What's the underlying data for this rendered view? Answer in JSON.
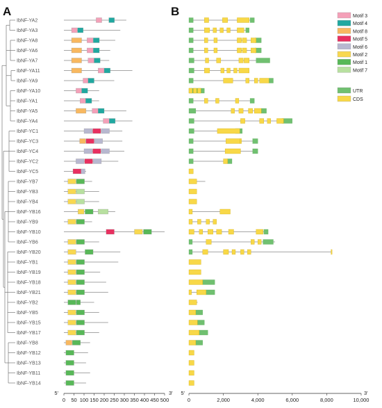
{
  "panels": {
    "a": "A",
    "b": "B"
  },
  "motif_legend": [
    {
      "label": "Motif 3",
      "color": "#f4a0b8"
    },
    {
      "label": "Motif 4",
      "color": "#20a8a0"
    },
    {
      "label": "Motif 8",
      "color": "#f8b860"
    },
    {
      "label": "Motif 5",
      "color": "#e83060"
    },
    {
      "label": "Motif 6",
      "color": "#b8b8d0"
    },
    {
      "label": "Motif 2",
      "color": "#f8d850"
    },
    {
      "label": "Motif 1",
      "color": "#58b858"
    },
    {
      "label": "Motif 7",
      "color": "#b8e0a0"
    }
  ],
  "structure_legend": [
    {
      "label": "UTR",
      "color": "#70c070"
    },
    {
      "label": "CDS",
      "color": "#f8d848"
    }
  ],
  "axis_a": {
    "prime5": "5'",
    "prime3": "3'",
    "ticks": [
      "0",
      "50",
      "100",
      "150",
      "200",
      "250",
      "300",
      "350",
      "400",
      "450",
      "500"
    ]
  },
  "axis_b": {
    "prime5": "5'",
    "prime3": "3'",
    "ticks": [
      "0",
      "2,000",
      "4,000",
      "6,000",
      "8,000",
      "10,000"
    ]
  },
  "genes": [
    {
      "name": "IbNF-YA2",
      "len": 310,
      "m": [
        [
          160,
          28,
          "m3"
        ],
        [
          223,
          28,
          "m4"
        ]
      ],
      "b_len": 3800,
      "u": [
        [
          0,
          250
        ],
        [
          3550,
          250
        ]
      ],
      "c": [
        [
          900,
          250
        ],
        [
          1950,
          300
        ],
        [
          2800,
          700
        ]
      ]
    },
    {
      "name": "IbNF-YA3",
      "len": 280,
      "m": [
        [
          38,
          28,
          "m3"
        ],
        [
          68,
          28,
          "m4"
        ]
      ],
      "b_len": 3500,
      "u": [
        [
          0,
          250
        ],
        [
          3300,
          200
        ]
      ],
      "c": [
        [
          900,
          300
        ],
        [
          1400,
          200
        ],
        [
          1800,
          200
        ],
        [
          2200,
          200
        ],
        [
          2800,
          400
        ]
      ]
    },
    {
      "name": "IbNF-YA8",
      "len": 255,
      "m": [
        [
          38,
          50,
          "m8"
        ],
        [
          115,
          30,
          "m3"
        ],
        [
          146,
          30,
          "m4"
        ]
      ],
      "b_len": 4200,
      "u": [
        [
          0,
          250
        ],
        [
          3850,
          350
        ]
      ],
      "c": [
        [
          900,
          200
        ],
        [
          1450,
          200
        ],
        [
          2800,
          250
        ],
        [
          3100,
          250
        ],
        [
          3600,
          300
        ]
      ]
    },
    {
      "name": "IbNF-YA6",
      "len": 230,
      "m": [
        [
          38,
          50,
          "m8"
        ],
        [
          115,
          30,
          "m3"
        ],
        [
          146,
          30,
          "m4"
        ]
      ],
      "b_len": 4200,
      "u": [
        [
          0,
          250
        ],
        [
          3850,
          350
        ]
      ],
      "c": [
        [
          900,
          200
        ],
        [
          1450,
          200
        ],
        [
          2800,
          250
        ],
        [
          3100,
          250
        ],
        [
          3600,
          300
        ]
      ]
    },
    {
      "name": "IbNF-YA7",
      "len": 225,
      "m": [
        [
          38,
          50,
          "m8"
        ],
        [
          120,
          30,
          "m3"
        ],
        [
          150,
          30,
          "m4"
        ]
      ],
      "b_len": 4700,
      "u": [
        [
          0,
          300
        ],
        [
          3900,
          800
        ]
      ],
      "c": [
        [
          950,
          200
        ],
        [
          1600,
          250
        ],
        [
          2900,
          250
        ],
        [
          3200,
          300
        ]
      ]
    },
    {
      "name": "IbNF-YA11",
      "len": 340,
      "m": [
        [
          38,
          50,
          "m8"
        ],
        [
          170,
          30,
          "m3"
        ],
        [
          200,
          30,
          "m4"
        ]
      ],
      "b_len": 3500,
      "u": [
        [
          0,
          300
        ]
      ],
      "c": [
        [
          900,
          300
        ],
        [
          1850,
          200
        ],
        [
          2200,
          200
        ],
        [
          2600,
          200
        ],
        [
          2900,
          600
        ]
      ]
    },
    {
      "name": "IbNF-YA9",
      "len": 250,
      "m": [
        [
          95,
          30,
          "m3"
        ],
        [
          120,
          30,
          "m4"
        ]
      ],
      "b_len": 4900,
      "u": [
        [
          0,
          250
        ],
        [
          4650,
          250
        ]
      ],
      "c": [
        [
          2000,
          550
        ],
        [
          3300,
          200
        ],
        [
          3800,
          200
        ],
        [
          4100,
          550
        ]
      ]
    },
    {
      "name": "IbNF-YA10",
      "len": 175,
      "m": [
        [
          60,
          30,
          "m3"
        ],
        [
          88,
          30,
          "m4"
        ]
      ],
      "b_len": 900,
      "u": [
        [
          0,
          900
        ]
      ],
      "c": [
        [
          0,
          200
        ],
        [
          250,
          200
        ],
        [
          500,
          200
        ]
      ]
    },
    {
      "name": "IbNF-YA1",
      "len": 175,
      "m": [
        [
          80,
          30,
          "m3"
        ],
        [
          108,
          30,
          "m4"
        ]
      ],
      "b_len": 3800,
      "u": [
        [
          0,
          250
        ],
        [
          3550,
          250
        ]
      ],
      "c": [
        [
          900,
          200
        ],
        [
          1550,
          200
        ],
        [
          2700,
          200
        ]
      ]
    },
    {
      "name": "IbNF-YA5",
      "len": 310,
      "m": [
        [
          60,
          50,
          "m8"
        ],
        [
          140,
          30,
          "m3"
        ],
        [
          170,
          30,
          "m4"
        ]
      ],
      "b_len": 4500,
      "u": [
        [
          0,
          400
        ],
        [
          4200,
          300
        ]
      ],
      "c": [
        [
          2450,
          200
        ],
        [
          2900,
          250
        ],
        [
          3450,
          250
        ],
        [
          3800,
          400
        ]
      ]
    },
    {
      "name": "IbNF-YA4",
      "len": 340,
      "m": [
        [
          195,
          30,
          "m3"
        ],
        [
          225,
          30,
          "m4"
        ]
      ],
      "b_len": 6000,
      "u": [
        [
          0,
          300
        ],
        [
          5400,
          600
        ]
      ],
      "c": [
        [
          3000,
          250
        ],
        [
          4100,
          250
        ],
        [
          4550,
          200
        ],
        [
          5100,
          400
        ]
      ]
    },
    {
      "name": "IbNF-YC1",
      "len": 290,
      "m": [
        [
          100,
          40,
          "m6"
        ],
        [
          143,
          40,
          "m5"
        ],
        [
          186,
          40,
          "m6"
        ]
      ],
      "b_len": 3100,
      "u": [
        [
          0,
          300
        ],
        [
          2700,
          400
        ]
      ],
      "c": [
        [
          1650,
          1300
        ]
      ]
    },
    {
      "name": "IbNF-YC3",
      "len": 290,
      "m": [
        [
          78,
          30,
          "m8"
        ],
        [
          110,
          40,
          "m5"
        ],
        [
          152,
          40,
          "m6"
        ]
      ],
      "b_len": 4000,
      "u": [
        [
          0,
          250
        ],
        [
          3700,
          300
        ]
      ],
      "c": [
        [
          2150,
          800
        ],
        [
          2950,
          100
        ]
      ]
    },
    {
      "name": "IbNF-YC4",
      "len": 300,
      "m": [
        [
          100,
          40,
          "m6"
        ],
        [
          143,
          40,
          "m5"
        ],
        [
          186,
          40,
          "m6"
        ]
      ],
      "b_len": 4000,
      "u": [
        [
          0,
          250
        ],
        [
          3700,
          300
        ]
      ],
      "c": [
        [
          2100,
          900
        ]
      ]
    },
    {
      "name": "IbNF-YC2",
      "len": 270,
      "m": [
        [
          60,
          40,
          "m6"
        ],
        [
          103,
          40,
          "m5"
        ],
        [
          146,
          40,
          "m6"
        ]
      ],
      "b_len": 2500,
      "u": [
        [
          0,
          250
        ],
        [
          2250,
          250
        ]
      ],
      "c": [
        [
          2000,
          250
        ]
      ]
    },
    {
      "name": "IbNF-YC5",
      "len": 110,
      "m": [
        [
          45,
          40,
          "m5"
        ],
        [
          85,
          20,
          "m6"
        ]
      ],
      "b_len": 250,
      "u": [],
      "c": [
        [
          0,
          250
        ]
      ]
    },
    {
      "name": "IbNF-YB7",
      "len": 140,
      "m": [
        [
          20,
          40,
          "m2"
        ],
        [
          62,
          40,
          "m1"
        ]
      ],
      "b_len": 950,
      "u": [],
      "c": [
        [
          0,
          450
        ]
      ]
    },
    {
      "name": "IbNF-YB3",
      "len": 175,
      "m": [
        [
          20,
          40,
          "m2"
        ],
        [
          62,
          40,
          "m7"
        ]
      ],
      "b_len": 450,
      "u": [],
      "c": [
        [
          0,
          450
        ]
      ]
    },
    {
      "name": "IbNF-YB4",
      "len": 175,
      "m": [
        [
          20,
          40,
          "m2"
        ],
        [
          62,
          40,
          "m7"
        ]
      ],
      "b_len": 450,
      "u": [],
      "c": [
        [
          0,
          450
        ]
      ]
    },
    {
      "name": "IbNF-YB16",
      "len": 255,
      "m": [
        [
          70,
          30,
          "m2"
        ],
        [
          105,
          40,
          "m1"
        ],
        [
          170,
          50,
          "m7"
        ]
      ],
      "b_len": 2400,
      "u": [],
      "c": [
        [
          0,
          200
        ],
        [
          1800,
          600
        ]
      ]
    },
    {
      "name": "IbNF-YB9",
      "len": 140,
      "m": [
        [
          20,
          40,
          "m2"
        ],
        [
          62,
          40,
          "m1"
        ]
      ],
      "b_len": 1600,
      "u": [],
      "c": [
        [
          0,
          200
        ],
        [
          500,
          200
        ],
        [
          1000,
          200
        ],
        [
          1400,
          200
        ]
      ]
    },
    {
      "name": "IbNF-YB10",
      "len": 500,
      "m": [
        [
          210,
          40,
          "m5"
        ],
        [
          350,
          40,
          "m2"
        ],
        [
          395,
          40,
          "m1"
        ]
      ],
      "b_len": 4600,
      "u": [
        [
          4350,
          250
        ]
      ],
      "c": [
        [
          0,
          300
        ],
        [
          600,
          200
        ],
        [
          1100,
          300
        ],
        [
          1600,
          300
        ],
        [
          2300,
          300
        ],
        [
          3900,
          400
        ]
      ]
    },
    {
      "name": "IbNF-YB6",
      "len": 175,
      "m": [
        [
          20,
          40,
          "m2"
        ],
        [
          62,
          40,
          "m1"
        ]
      ],
      "b_len": 5000,
      "u": [
        [
          0,
          200
        ],
        [
          4300,
          600
        ]
      ],
      "c": [
        [
          1000,
          300
        ],
        [
          3600,
          200
        ],
        [
          4000,
          200
        ]
      ]
    },
    {
      "name": "IbNF-YB20",
      "len": 280,
      "m": [
        [
          20,
          40,
          "m2"
        ],
        [
          105,
          40,
          "m1"
        ]
      ],
      "b_len": 8300,
      "u": [
        [
          0,
          200
        ]
      ],
      "c": [
        [
          800,
          300
        ],
        [
          2000,
          300
        ],
        [
          2500,
          200
        ],
        [
          3000,
          200
        ],
        [
          3400,
          200
        ],
        [
          8250,
          50
        ]
      ]
    },
    {
      "name": "IbNF-YB1",
      "len": 270,
      "m": [
        [
          20,
          40,
          "m2"
        ],
        [
          62,
          40,
          "m1"
        ]
      ],
      "b_len": 700,
      "u": [],
      "c": [
        [
          0,
          700
        ]
      ]
    },
    {
      "name": "IbNF-YB19",
      "len": 180,
      "m": [
        [
          20,
          40,
          "m2"
        ],
        [
          62,
          40,
          "m1"
        ]
      ],
      "b_len": 700,
      "u": [],
      "c": [
        [
          0,
          700
        ]
      ]
    },
    {
      "name": "IbNF-YB18",
      "len": 210,
      "m": [
        [
          20,
          40,
          "m2"
        ],
        [
          62,
          40,
          "m1"
        ]
      ],
      "b_len": 1500,
      "u": [
        [
          800,
          700
        ]
      ],
      "c": [
        [
          0,
          800
        ]
      ]
    },
    {
      "name": "IbNF-YB21",
      "len": 220,
      "m": [
        [
          20,
          40,
          "m2"
        ],
        [
          62,
          40,
          "m1"
        ]
      ],
      "b_len": 1500,
      "u": [
        [
          1000,
          500
        ]
      ],
      "c": [
        [
          0,
          150
        ],
        [
          450,
          550
        ]
      ]
    },
    {
      "name": "IbNF-YB2",
      "len": 150,
      "m": [
        [
          20,
          40,
          "m1"
        ],
        [
          62,
          20,
          "m1"
        ]
      ],
      "b_len": 500,
      "u": [],
      "c": [
        [
          0,
          450
        ]
      ]
    },
    {
      "name": "IbNF-YB5",
      "len": 175,
      "m": [
        [
          20,
          40,
          "m2"
        ],
        [
          62,
          40,
          "m1"
        ]
      ],
      "b_len": 800,
      "u": [
        [
          400,
          400
        ]
      ],
      "c": [
        [
          0,
          400
        ]
      ]
    },
    {
      "name": "IbNF-YB15",
      "len": 220,
      "m": [
        [
          20,
          40,
          "m2"
        ],
        [
          62,
          40,
          "m1"
        ]
      ],
      "b_len": 900,
      "u": [
        [
          500,
          400
        ]
      ],
      "c": [
        [
          0,
          500
        ]
      ]
    },
    {
      "name": "IbNF-YB17",
      "len": 175,
      "m": [
        [
          20,
          40,
          "m2"
        ],
        [
          62,
          40,
          "m1"
        ]
      ],
      "b_len": 1100,
      "u": [
        [
          600,
          500
        ]
      ],
      "c": [
        [
          0,
          600
        ]
      ]
    },
    {
      "name": "IbNF-YB8",
      "len": 130,
      "m": [
        [
          10,
          30,
          "m8"
        ],
        [
          42,
          40,
          "m1"
        ]
      ],
      "b_len": 800,
      "u": [
        [
          400,
          400
        ]
      ],
      "c": [
        [
          0,
          400
        ]
      ]
    },
    {
      "name": "IbNF-YB12",
      "len": 120,
      "m": [
        [
          10,
          40,
          "m1"
        ]
      ],
      "b_len": 300,
      "u": [],
      "c": [
        [
          0,
          300
        ]
      ]
    },
    {
      "name": "IbNF-YB13",
      "len": 110,
      "m": [
        [
          10,
          40,
          "m1"
        ]
      ],
      "b_len": 300,
      "u": [],
      "c": [
        [
          0,
          300
        ]
      ]
    },
    {
      "name": "IbNF-YB11",
      "len": 130,
      "m": [
        [
          10,
          40,
          "m1"
        ]
      ],
      "b_len": 300,
      "u": [],
      "c": [
        [
          0,
          300
        ]
      ]
    },
    {
      "name": "IbNF-YB14",
      "len": 110,
      "m": [
        [
          10,
          40,
          "m1"
        ]
      ],
      "b_len": 300,
      "u": [],
      "c": [
        [
          0,
          300
        ]
      ]
    }
  ]
}
